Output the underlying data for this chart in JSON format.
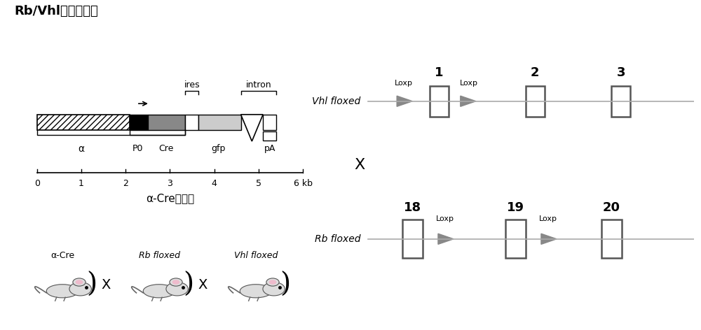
{
  "title": "Rb/Vhl双敲除小鼠",
  "title_fontsize": 13,
  "background_color": "#ffffff",
  "subtitle": "α-Cre结构图",
  "mouse_labels": [
    "α-Cre",
    "Rb floxed",
    "Vhl floxed"
  ],
  "colors": {
    "gray_line": "#999999",
    "exon_edge": "#555555",
    "arrow_fill": "#888888",
    "dark_gray": "#888888",
    "light_gray": "#cccccc"
  }
}
